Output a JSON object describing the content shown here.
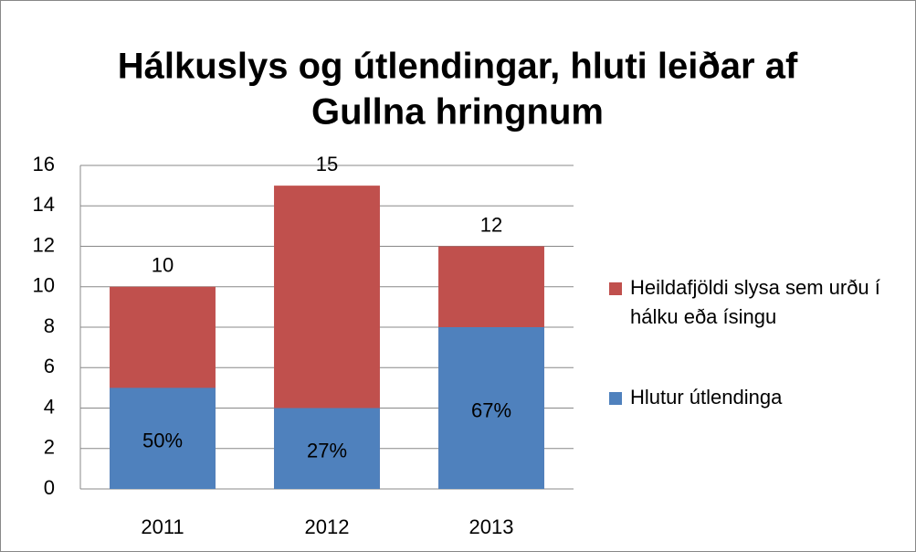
{
  "chart_data": {
    "type": "bar",
    "overlap": true,
    "title": [
      "Hálkuslys og útlendingar, hluti leiðar af",
      "Gullna hringnum"
    ],
    "categories": [
      "2011",
      "2012",
      "2013"
    ],
    "series": [
      {
        "name": "Heildafjöldi slysa sem urðu í hálku eða ísingu",
        "color": "#c0504d",
        "values": [
          10,
          15,
          12
        ]
      },
      {
        "name": "Hlutur útlendinga",
        "color": "#4f81bd",
        "values": [
          5,
          4,
          8
        ],
        "annotations": [
          "50%",
          "27%",
          "67%"
        ]
      }
    ],
    "ylim": [
      0,
      16
    ],
    "yticks": [
      0,
      2,
      4,
      6,
      8,
      10,
      12,
      14,
      16
    ],
    "grid": true,
    "legend": "right"
  }
}
